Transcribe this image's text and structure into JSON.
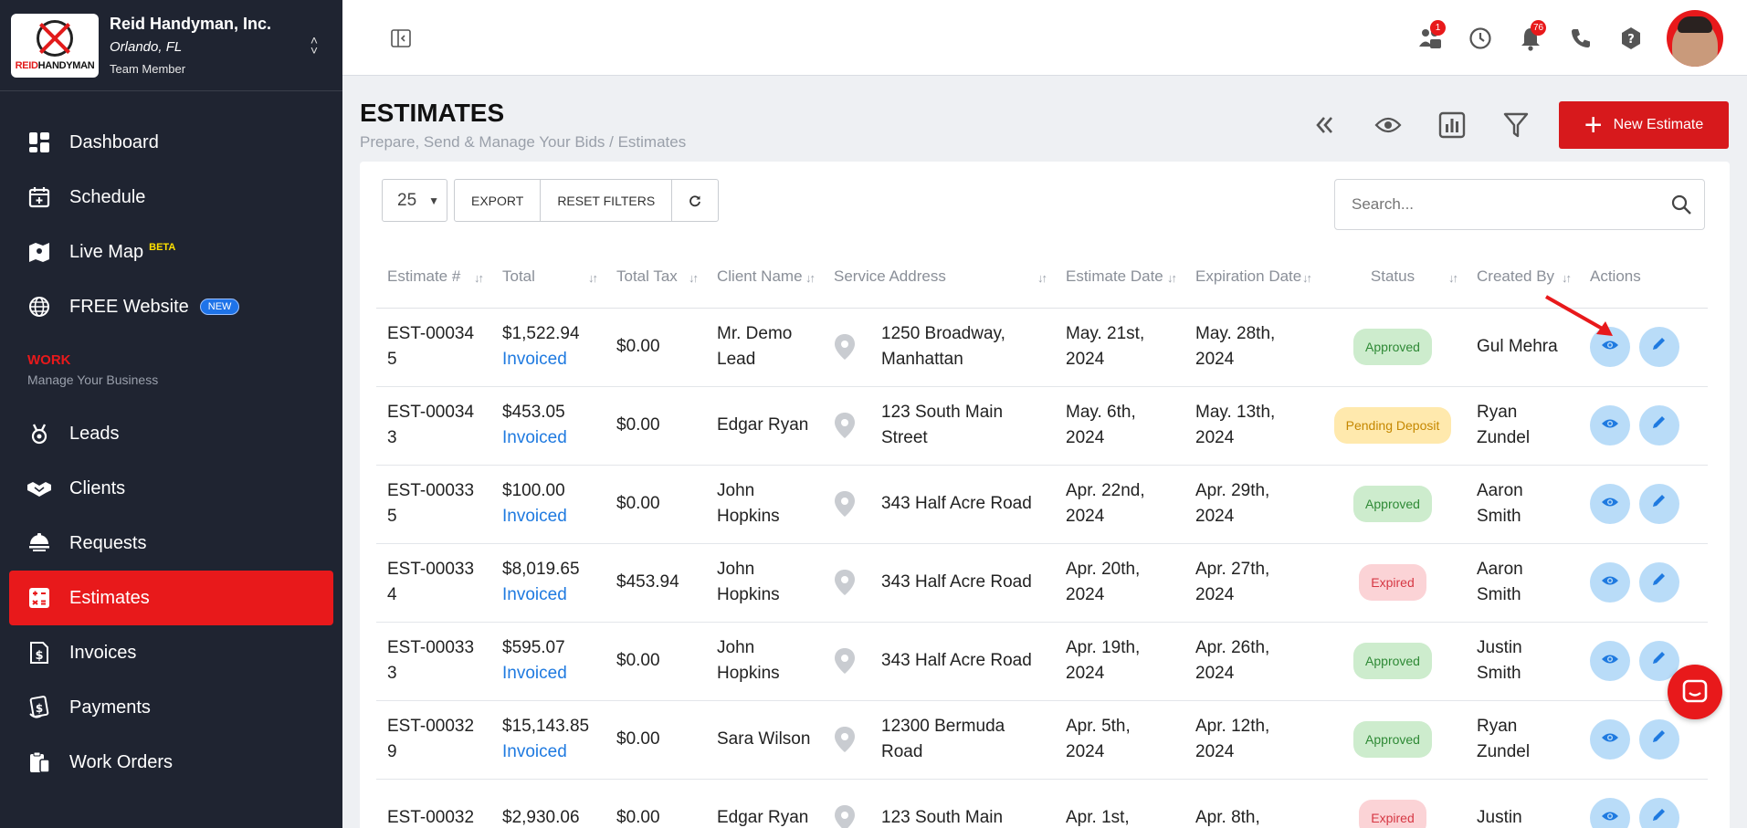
{
  "company": {
    "logo_text_red": "REID",
    "logo_text_black": "HANDYMAN",
    "name": "Reid Handyman, Inc.",
    "city": "Orlando, FL",
    "role": "Team Member"
  },
  "sidebar": {
    "top_items": [
      {
        "label": "Dashboard",
        "icon": "dashboard-icon"
      },
      {
        "label": "Schedule",
        "icon": "calendar-icon"
      },
      {
        "label": "Live Map",
        "icon": "map-icon",
        "badge": "BETA"
      },
      {
        "label": "FREE Website",
        "icon": "globe-icon",
        "badge": "NEW"
      }
    ],
    "section_title": "WORK",
    "section_subtitle": "Manage Your Business",
    "work_items": [
      {
        "label": "Leads",
        "icon": "leads-icon"
      },
      {
        "label": "Clients",
        "icon": "handshake-icon"
      },
      {
        "label": "Requests",
        "icon": "requests-icon"
      },
      {
        "label": "Estimates",
        "icon": "calculator-icon",
        "active": true
      },
      {
        "label": "Invoices",
        "icon": "invoice-icon"
      },
      {
        "label": "Payments",
        "icon": "payments-icon"
      },
      {
        "label": "Work Orders",
        "icon": "clipboard-icon"
      }
    ]
  },
  "header": {
    "team_badge": "1",
    "notifications_badge": "76",
    "icons": [
      "team-icon",
      "clock-icon",
      "bell-icon",
      "phone-icon",
      "help-icon"
    ]
  },
  "page": {
    "title": "ESTIMATES",
    "subtitle": "Prepare, Send & Manage Your Bids / Estimates",
    "new_button": "New Estimate"
  },
  "toolbar": {
    "page_size": "25",
    "export_label": "EXPORT",
    "reset_label": "RESET FILTERS",
    "search_placeholder": "Search..."
  },
  "table": {
    "columns": [
      "Estimate #",
      "Total",
      "Total Tax",
      "Client Name",
      "Service Address",
      "Estimate Date",
      "Expiration Date",
      "Status",
      "Created By",
      "Actions"
    ],
    "rows": [
      {
        "est": "EST-000345",
        "total": "$1,522.94",
        "sub": "Invoiced",
        "tax": "$0.00",
        "client": "Mr. Demo Lead",
        "address": "1250 Broadway, Manhattan",
        "est_date": "May. 21st, 2024",
        "exp_date": "May. 28th, 2024",
        "status": "Approved",
        "status_type": "approved",
        "by": "Gul Mehra"
      },
      {
        "est": "EST-000343",
        "total": "$453.05",
        "sub": "Invoiced",
        "tax": "$0.00",
        "client": "Edgar Ryan",
        "address": "123 South Main Street",
        "est_date": "May. 6th, 2024",
        "exp_date": "May. 13th, 2024",
        "status": "Pending Deposit",
        "status_type": "pending",
        "by": "Ryan Zundel"
      },
      {
        "est": "EST-000335",
        "total": "$100.00",
        "sub": "Invoiced",
        "tax": "$0.00",
        "client": "John Hopkins",
        "address": "343 Half Acre Road",
        "est_date": "Apr. 22nd, 2024",
        "exp_date": "Apr. 29th, 2024",
        "status": "Approved",
        "status_type": "approved",
        "by": "Aaron Smith"
      },
      {
        "est": "EST-000334",
        "total": "$8,019.65",
        "sub": "Invoiced",
        "tax": "$453.94",
        "client": "John Hopkins",
        "address": "343 Half Acre Road",
        "est_date": "Apr. 20th, 2024",
        "exp_date": "Apr. 27th, 2024",
        "status": "Expired",
        "status_type": "expired",
        "by": "Aaron Smith"
      },
      {
        "est": "EST-000333",
        "total": "$595.07",
        "sub": "Invoiced",
        "tax": "$0.00",
        "client": "John Hopkins",
        "address": "343 Half Acre Road",
        "est_date": "Apr. 19th, 2024",
        "exp_date": "Apr. 26th, 2024",
        "status": "Approved",
        "status_type": "approved",
        "by": "Justin Smith"
      },
      {
        "est": "EST-000329",
        "total": "$15,143.85",
        "sub": "Invoiced",
        "tax": "$0.00",
        "client": "Sara Wilson",
        "address": "12300 Bermuda Road",
        "est_date": "Apr. 5th, 2024",
        "exp_date": "Apr. 12th, 2024",
        "status": "Approved",
        "status_type": "approved",
        "by": "Ryan Zundel"
      },
      {
        "est": "EST-00032",
        "total": "$2,930.06",
        "sub": "",
        "tax": "$0.00",
        "client": "Edgar Ryan",
        "address": "123 South Main",
        "est_date": "Apr. 1st,",
        "exp_date": "Apr. 8th,",
        "status": "Expired",
        "status_type": "expired",
        "by": "Justin"
      }
    ]
  },
  "colors": {
    "sidebar_bg": "#1f2431",
    "accent_red": "#e8191b",
    "link_blue": "#1f7ae0"
  }
}
